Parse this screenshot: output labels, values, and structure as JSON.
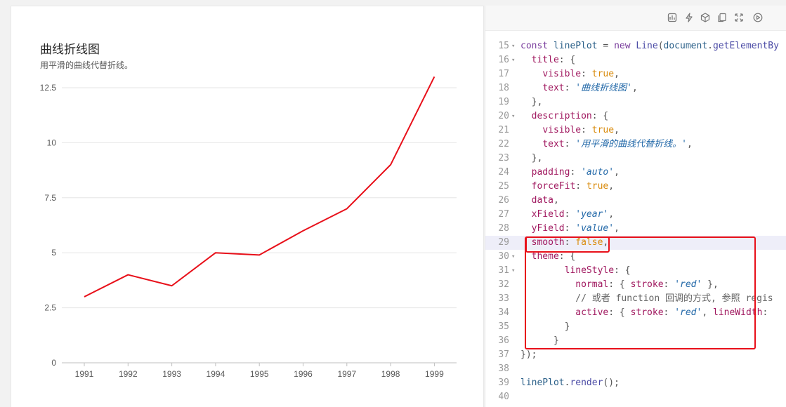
{
  "chart": {
    "title": "曲线折线图",
    "description": "用平滑的曲线代替折线。"
  },
  "chart_data": {
    "type": "line",
    "categories": [
      "1991",
      "1992",
      "1993",
      "1994",
      "1995",
      "1996",
      "1997",
      "1998",
      "1999"
    ],
    "values": [
      3,
      4,
      3.5,
      5,
      4.9,
      6,
      7,
      9,
      13
    ],
    "ylim": [
      0,
      12.5
    ],
    "yticks": [
      "0",
      "2.5",
      "5",
      "7.5",
      "10",
      "12.5"
    ],
    "grid": true,
    "line_color": "#e8101a"
  },
  "toolbar": {
    "icons": [
      "chart-icon",
      "lightning-icon",
      "box-icon",
      "copy-icon",
      "fullscreen-icon",
      "play-icon"
    ]
  },
  "code": {
    "lines": [
      {
        "n": "15",
        "fold": true,
        "t": [
          [
            "kw",
            "const "
          ],
          [
            "id",
            "linePlot"
          ],
          [
            "pun",
            " = "
          ],
          [
            "kw",
            "new "
          ],
          [
            "fn",
            "Line"
          ],
          [
            "pun",
            "("
          ],
          [
            "id",
            "document"
          ],
          [
            "pun",
            "."
          ],
          [
            "fn",
            "getElementBy"
          ]
        ]
      },
      {
        "n": "16",
        "fold": true,
        "t": [
          [
            "pun",
            "  "
          ],
          [
            "prop",
            "title"
          ],
          [
            "pun",
            ": {"
          ]
        ]
      },
      {
        "n": "17",
        "fold": false,
        "t": [
          [
            "pun",
            "    "
          ],
          [
            "prop",
            "visible"
          ],
          [
            "pun",
            ": "
          ],
          [
            "bool",
            "true"
          ],
          [
            "pun",
            ","
          ]
        ]
      },
      {
        "n": "18",
        "fold": false,
        "t": [
          [
            "pun",
            "    "
          ],
          [
            "prop",
            "text"
          ],
          [
            "pun",
            ": "
          ],
          [
            "str",
            "'曲线折线图'"
          ],
          [
            "pun",
            ","
          ]
        ]
      },
      {
        "n": "19",
        "fold": false,
        "t": [
          [
            "pun",
            "  },"
          ]
        ]
      },
      {
        "n": "20",
        "fold": true,
        "t": [
          [
            "pun",
            "  "
          ],
          [
            "prop",
            "description"
          ],
          [
            "pun",
            ": {"
          ]
        ]
      },
      {
        "n": "21",
        "fold": false,
        "t": [
          [
            "pun",
            "    "
          ],
          [
            "prop",
            "visible"
          ],
          [
            "pun",
            ": "
          ],
          [
            "bool",
            "true"
          ],
          [
            "pun",
            ","
          ]
        ]
      },
      {
        "n": "22",
        "fold": false,
        "t": [
          [
            "pun",
            "    "
          ],
          [
            "prop",
            "text"
          ],
          [
            "pun",
            ": "
          ],
          [
            "str",
            "'用平滑的曲线代替折线。'"
          ],
          [
            "pun",
            ","
          ]
        ]
      },
      {
        "n": "23",
        "fold": false,
        "t": [
          [
            "pun",
            "  },"
          ]
        ]
      },
      {
        "n": "24",
        "fold": false,
        "t": [
          [
            "pun",
            "  "
          ],
          [
            "prop",
            "padding"
          ],
          [
            "pun",
            ": "
          ],
          [
            "str",
            "'auto'"
          ],
          [
            "pun",
            ","
          ]
        ]
      },
      {
        "n": "25",
        "fold": false,
        "t": [
          [
            "pun",
            "  "
          ],
          [
            "prop",
            "forceFit"
          ],
          [
            "pun",
            ": "
          ],
          [
            "bool",
            "true"
          ],
          [
            "pun",
            ","
          ]
        ]
      },
      {
        "n": "26",
        "fold": false,
        "t": [
          [
            "pun",
            "  "
          ],
          [
            "prop",
            "data"
          ],
          [
            "pun",
            ","
          ]
        ]
      },
      {
        "n": "27",
        "fold": false,
        "t": [
          [
            "pun",
            "  "
          ],
          [
            "prop",
            "xField"
          ],
          [
            "pun",
            ": "
          ],
          [
            "str",
            "'year'"
          ],
          [
            "pun",
            ","
          ]
        ]
      },
      {
        "n": "28",
        "fold": false,
        "t": [
          [
            "pun",
            "  "
          ],
          [
            "prop",
            "yField"
          ],
          [
            "pun",
            ": "
          ],
          [
            "str",
            "'value'"
          ],
          [
            "pun",
            ","
          ]
        ]
      },
      {
        "n": "29",
        "fold": false,
        "hl": true,
        "t": [
          [
            "pun",
            "  "
          ],
          [
            "prop",
            "smooth"
          ],
          [
            "pun",
            ": "
          ],
          [
            "bool",
            "false"
          ],
          [
            "pun",
            ","
          ]
        ]
      },
      {
        "n": "30",
        "fold": true,
        "t": [
          [
            "pun",
            "  "
          ],
          [
            "prop",
            "theme"
          ],
          [
            "pun",
            ": {"
          ]
        ]
      },
      {
        "n": "31",
        "fold": true,
        "t": [
          [
            "pun",
            "        "
          ],
          [
            "prop",
            "lineStyle"
          ],
          [
            "pun",
            ": {"
          ]
        ]
      },
      {
        "n": "32",
        "fold": false,
        "t": [
          [
            "pun",
            "          "
          ],
          [
            "prop",
            "normal"
          ],
          [
            "pun",
            ": { "
          ],
          [
            "prop",
            "stroke"
          ],
          [
            "pun",
            ": "
          ],
          [
            "str",
            "'red'"
          ],
          [
            "pun",
            " },"
          ]
        ]
      },
      {
        "n": "33",
        "fold": false,
        "t": [
          [
            "cm",
            "          // 或者 function 回调的方式, 参照 regis"
          ]
        ]
      },
      {
        "n": "34",
        "fold": false,
        "t": [
          [
            "pun",
            "          "
          ],
          [
            "prop",
            "active"
          ],
          [
            "pun",
            ": { "
          ],
          [
            "prop",
            "stroke"
          ],
          [
            "pun",
            ": "
          ],
          [
            "str",
            "'red'"
          ],
          [
            "pun",
            ", "
          ],
          [
            "prop",
            "lineWidth"
          ],
          [
            "pun",
            ":"
          ]
        ]
      },
      {
        "n": "35",
        "fold": false,
        "t": [
          [
            "pun",
            "        }"
          ]
        ]
      },
      {
        "n": "36",
        "fold": false,
        "t": [
          [
            "pun",
            "      }"
          ]
        ]
      },
      {
        "n": "37",
        "fold": false,
        "t": [
          [
            "pun",
            "});"
          ]
        ]
      },
      {
        "n": "38",
        "fold": false,
        "t": [
          [
            "pun",
            ""
          ]
        ]
      },
      {
        "n": "39",
        "fold": false,
        "t": [
          [
            "id",
            "linePlot"
          ],
          [
            "pun",
            "."
          ],
          [
            "fn",
            "render"
          ],
          [
            "pun",
            "();"
          ]
        ]
      },
      {
        "n": "40",
        "fold": false,
        "t": [
          [
            "pun",
            ""
          ]
        ]
      }
    ]
  }
}
